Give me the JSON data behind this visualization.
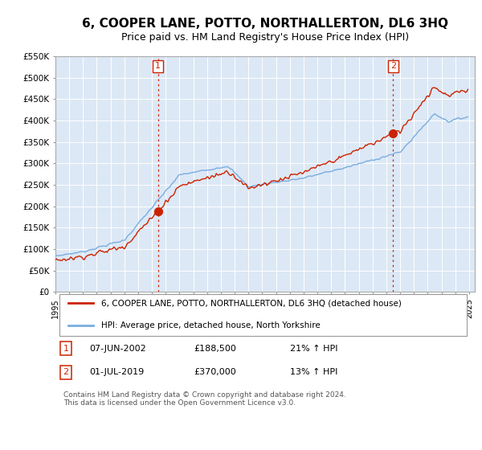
{
  "title": "6, COOPER LANE, POTTO, NORTHALLERTON, DL6 3HQ",
  "subtitle": "Price paid vs. HM Land Registry's House Price Index (HPI)",
  "title_fontsize": 11,
  "subtitle_fontsize": 9,
  "bg_color": "#ffffff",
  "plot_bg_color": "#dce8f5",
  "grid_color": "#ffffff",
  "hpi_line_color": "#7aade0",
  "price_line_color": "#cc2200",
  "marker_color": "#cc2200",
  "vline_color": "#cc2200",
  "ylim": [
    0,
    550000
  ],
  "yticks": [
    0,
    50000,
    100000,
    150000,
    200000,
    250000,
    300000,
    350000,
    400000,
    450000,
    500000,
    550000
  ],
  "sale1_date": "2002-06-07",
  "sale1_price": 188500,
  "sale2_date": "2019-07-01",
  "sale2_price": 370000,
  "legend_price_label": "6, COOPER LANE, POTTO, NORTHALLERTON, DL6 3HQ (detached house)",
  "legend_hpi_label": "HPI: Average price, detached house, North Yorkshire",
  "footer_text": "Contains HM Land Registry data © Crown copyright and database right 2024.\nThis data is licensed under the Open Government Licence v3.0."
}
